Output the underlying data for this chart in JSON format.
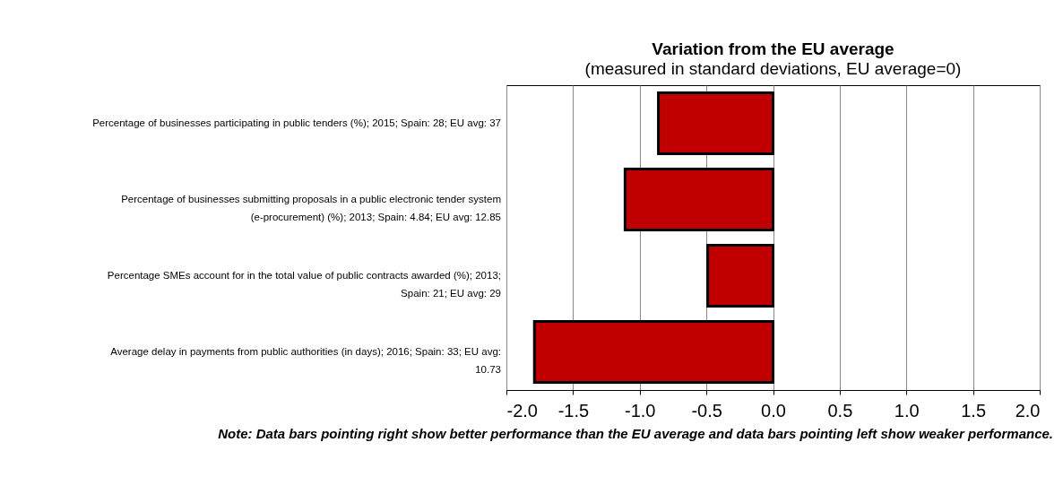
{
  "chart_data": {
    "type": "bar",
    "orientation": "horizontal",
    "title": "Variation from the EU average",
    "subtitle": "(measured in standard deviations, EU average=0)",
    "categories": [
      "Percentage of businesses participating in public tenders (%); 2015; Spain: 28; EU avg: 37",
      "Percentage of businesses submitting proposals in a public electronic tender system (e-procurement) (%); 2013; Spain: 4.84; EU avg: 12.85",
      "Percentage SMEs account for in the total value of public contracts awarded (%); 2013; Spain: 21; EU avg: 29",
      "Average delay in payments from public authorities (in days); 2016; Spain: 33; EU avg: 10.73"
    ],
    "values": [
      -0.86,
      -1.11,
      -0.49,
      -1.79
    ],
    "color": "#c00000",
    "xlim": [
      -2.0,
      2.0
    ],
    "xticks": [
      {
        "value": -2.0,
        "label": "-2.0"
      },
      {
        "value": -1.5,
        "label": "-1.5"
      },
      {
        "value": -1.0,
        "label": "-1.0"
      },
      {
        "value": -0.5,
        "label": "-0.5"
      },
      {
        "value": 0.0,
        "label": "0.0"
      },
      {
        "value": 0.5,
        "label": "0.5"
      },
      {
        "value": 1.0,
        "label": "1.0"
      },
      {
        "value": 1.5,
        "label": "1.5"
      },
      {
        "value": 2.0,
        "label": "2.0"
      }
    ],
    "grid": "x",
    "annotations": [
      "Note: Data bars pointing right show better performance than the EU average and data bars pointing left show weaker performance."
    ]
  }
}
